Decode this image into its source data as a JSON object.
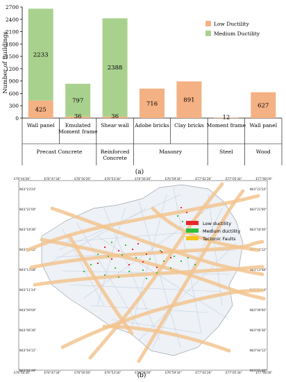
{
  "caption_a": "(a)",
  "caption_b": "(b)",
  "chart_data": {
    "type": "bar",
    "stacked": true,
    "ylabel": "Number of Buildings",
    "ylim": [
      0,
      2700
    ],
    "yticks": [
      0,
      300,
      600,
      900,
      1200,
      1500,
      1800,
      2100,
      2400,
      2700
    ],
    "categories": [
      "Wall panel",
      "Emulated Moment frame",
      "Shear wall",
      "Adobe bricks",
      "Clay bricks",
      "Moment frame",
      "Wall panel"
    ],
    "category_lines": [
      [
        "Wall panel"
      ],
      [
        "Emulated",
        "Moment frame"
      ],
      [
        "Shear wall"
      ],
      [
        "Adobe bricks"
      ],
      [
        "Clay bricks"
      ],
      [
        "Moment frame"
      ],
      [
        "Wall panel"
      ]
    ],
    "groups": [
      {
        "label_lines": [
          "Precast Concrete"
        ],
        "start": 0,
        "end": 1
      },
      {
        "label_lines": [
          "Reinforced",
          "Concrete"
        ],
        "start": 2,
        "end": 2
      },
      {
        "label_lines": [
          "Masonry"
        ],
        "start": 3,
        "end": 4
      },
      {
        "label_lines": [
          "Steel"
        ],
        "start": 5,
        "end": 5
      },
      {
        "label_lines": [
          "Wood"
        ],
        "start": 6,
        "end": 6
      }
    ],
    "series": [
      {
        "name": "Low Ductility",
        "color": "#f4b183",
        "values": [
          425,
          36,
          36,
          716,
          891,
          12,
          627
        ]
      },
      {
        "name": "Medium Ductility",
        "color": "#a9d18e",
        "values": [
          2233,
          797,
          2388,
          0,
          0,
          0,
          0
        ]
      }
    ],
    "value_labels": [
      {
        "category": 0,
        "series": 0,
        "text": "425"
      },
      {
        "category": 0,
        "series": 1,
        "text": "2233"
      },
      {
        "category": 1,
        "series": 0,
        "text": "36"
      },
      {
        "category": 1,
        "series": 1,
        "text": "797"
      },
      {
        "category": 2,
        "series": 0,
        "text": "36"
      },
      {
        "category": 2,
        "series": 1,
        "text": "2388"
      },
      {
        "category": 3,
        "series": 0,
        "text": "716"
      },
      {
        "category": 4,
        "series": 0,
        "text": "891"
      },
      {
        "category": 5,
        "series": 0,
        "text": "12"
      },
      {
        "category": 6,
        "series": 0,
        "text": "627"
      }
    ],
    "legend_position": "top-right",
    "grid": false
  },
  "map": {
    "top_ticks": [
      "E76°44'26\"",
      "E76°47'34\"",
      "E76°50'26\"",
      "E76°53'34\"",
      "E76°56'26\"",
      "E76°59'34\"",
      "E77°02'26\"",
      "E77°05'34\"",
      "E77°08'26\""
    ],
    "bottom_ticks": [
      "E76°44'26\"",
      "E76°47'34\"",
      "E76°50'26\"",
      "E76°53'34\"",
      "E76°56'26\"",
      "E76°59'34\"",
      "E77°02'26\"",
      "E77°05'34\"",
      "E77°08'26\""
    ],
    "left_ticks": [
      "N43°23'24\"",
      "N43°21'00\"",
      "N43°18'36\"",
      "N43°16'12\"",
      "N43°13'48\"",
      "N43°11'24\"",
      "N43°09'00\"",
      "N43°06'36\"",
      "N43°04'12\"",
      "N43°01'48\""
    ],
    "right_ticks": [
      "N43°23'24\"",
      "N43°21'00\"",
      "N43°18'36\"",
      "N43°16'12\"",
      "N43°13'48\"",
      "N43°11'24\"",
      "N43°09'00\"",
      "N43°06'36\"",
      "N43°04'12\"",
      "N43°01'48\""
    ],
    "legend": [
      {
        "label": "Low ductility",
        "color": "#e8262a"
      },
      {
        "label": "Medium ductility",
        "color": "#2fbf3a"
      },
      {
        "label": "Tectonic Faults",
        "color": "#f4c21b"
      }
    ],
    "colors": {
      "fault": "#f2c48f",
      "road": "#b9cbe0",
      "boundary": "#9aa4ad"
    }
  }
}
